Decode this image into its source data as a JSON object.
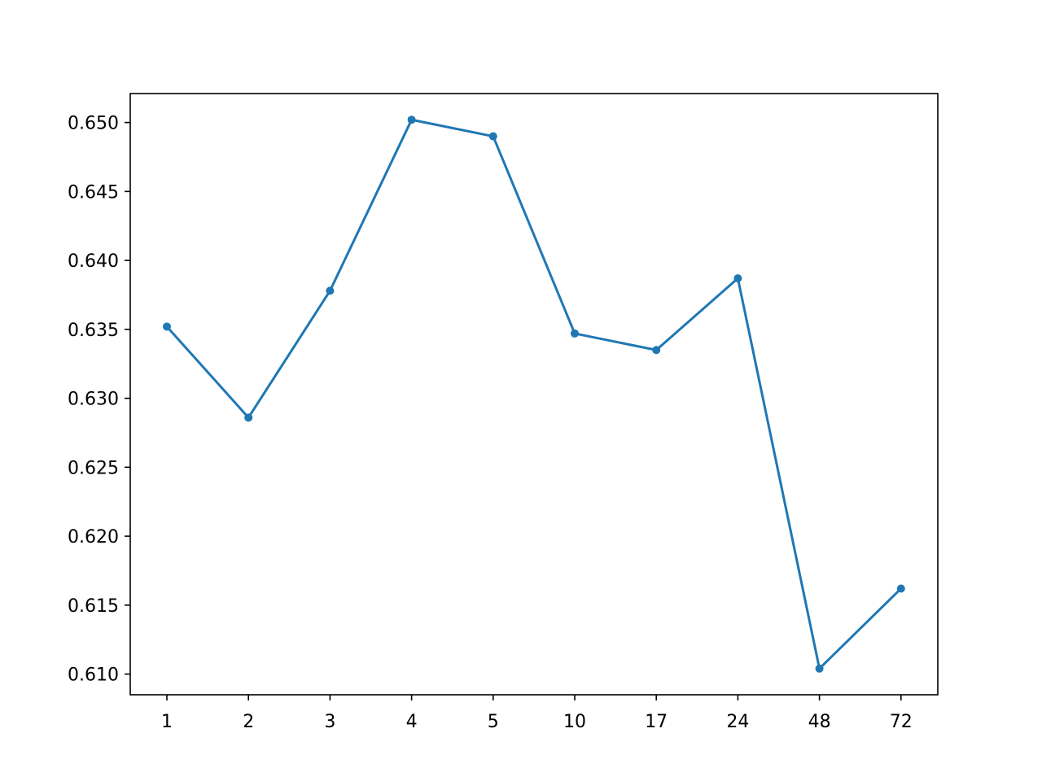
{
  "chart_data": {
    "type": "line",
    "categories": [
      "1",
      "2",
      "3",
      "4",
      "5",
      "10",
      "17",
      "24",
      "48",
      "72"
    ],
    "series": [
      {
        "values": [
          0.6352,
          0.6286,
          0.6378,
          0.6502,
          0.649,
          0.6347,
          0.6335,
          0.6387,
          0.6104,
          0.6162
        ],
        "color": "#1f77b4",
        "marker": "circle"
      }
    ],
    "yticks": [
      "0.610",
      "0.615",
      "0.620",
      "0.625",
      "0.630",
      "0.635",
      "0.640",
      "0.645",
      "0.650"
    ],
    "ylim": [
      0.6085,
      0.6521
    ],
    "grid": false,
    "legend": "none"
  }
}
